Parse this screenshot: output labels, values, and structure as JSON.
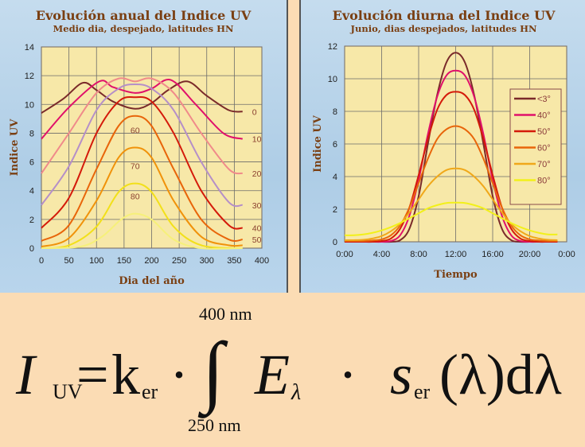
{
  "chart_data": [
    {
      "type": "line",
      "title": "Evolución anual del Indice UV",
      "subtitle": "Medio dia, despejado, latitudes HN",
      "xlabel": "Dia del año",
      "ylabel": "Indice UV",
      "xlim": [
        0,
        400
      ],
      "ylim": [
        0,
        14
      ],
      "xticks": [
        "0",
        "50",
        "100",
        "150",
        "200",
        "250",
        "300",
        "350",
        "400"
      ],
      "yticks": [
        "0",
        "2",
        "4",
        "6",
        "8",
        "10",
        "12",
        "14"
      ],
      "grid": true,
      "series": [
        {
          "name": "0",
          "color": "#7a2a2a",
          "label_pos": "right",
          "points": [
            [
              0,
              9.4
            ],
            [
              40,
              10.4
            ],
            [
              75,
              11.5
            ],
            [
              100,
              11
            ],
            [
              130,
              10.2
            ],
            [
              170,
              9.7
            ],
            [
              200,
              10.1
            ],
            [
              230,
              11
            ],
            [
              265,
              11.6
            ],
            [
              300,
              10.6
            ],
            [
              340,
              9.6
            ],
            [
              365,
              9.5
            ]
          ]
        },
        {
          "name": "10",
          "color": "#e0106a",
          "label_pos": "right",
          "points": [
            [
              0,
              7.6
            ],
            [
              50,
              9.8
            ],
            [
              105,
              11.6
            ],
            [
              130,
              11.2
            ],
            [
              170,
              10.8
            ],
            [
              200,
              11.1
            ],
            [
              235,
              11.7
            ],
            [
              280,
              10
            ],
            [
              330,
              8
            ],
            [
              365,
              7.6
            ]
          ]
        },
        {
          "name": "20",
          "color": "#f08a8a",
          "label_pos": "right",
          "points": [
            [
              0,
              5.2
            ],
            [
              50,
              8
            ],
            [
              100,
              10.8
            ],
            [
              140,
              11.8
            ],
            [
              170,
              11.6
            ],
            [
              200,
              11.8
            ],
            [
              240,
              10.8
            ],
            [
              290,
              8
            ],
            [
              340,
              5.5
            ],
            [
              365,
              5.2
            ]
          ]
        },
        {
          "name": "30",
          "color": "#b58fc8",
          "label_pos": "right",
          "points": [
            [
              0,
              3
            ],
            [
              50,
              5.7
            ],
            [
              100,
              9.6
            ],
            [
              140,
              11.1
            ],
            [
              170,
              11.4
            ],
            [
              200,
              11.1
            ],
            [
              240,
              9.6
            ],
            [
              290,
              6
            ],
            [
              340,
              3.2
            ],
            [
              365,
              3
            ]
          ]
        },
        {
          "name": "40",
          "color": "#d41a0a",
          "label_pos": "right",
          "points": [
            [
              0,
              1.4
            ],
            [
              50,
              3.5
            ],
            [
              100,
              8
            ],
            [
              140,
              10.2
            ],
            [
              170,
              10.5
            ],
            [
              200,
              10.2
            ],
            [
              240,
              8
            ],
            [
              290,
              4
            ],
            [
              340,
              1.6
            ],
            [
              365,
              1.4
            ]
          ]
        },
        {
          "name": "50",
          "color": "#e8650a",
          "label_pos": "right",
          "points": [
            [
              0,
              0.5
            ],
            [
              50,
              1.6
            ],
            [
              100,
              5.5
            ],
            [
              140,
              8.5
            ],
            [
              170,
              9.2
            ],
            [
              200,
              8.5
            ],
            [
              240,
              5.5
            ],
            [
              290,
              2
            ],
            [
              340,
              0.6
            ],
            [
              365,
              0.6
            ]
          ]
        },
        {
          "name": "60",
          "color": "#f0920a",
          "label_pos": "peak",
          "points": [
            [
              0,
              0.1
            ],
            [
              50,
              0.7
            ],
            [
              100,
              3.3
            ],
            [
              140,
              6.3
            ],
            [
              170,
              7
            ],
            [
              200,
              6.3
            ],
            [
              240,
              3.3
            ],
            [
              290,
              0.8
            ],
            [
              340,
              0.2
            ],
            [
              365,
              0.2
            ]
          ]
        },
        {
          "name": "70",
          "color": "#f2e01a",
          "label_pos": "peak",
          "points": [
            [
              0,
              0
            ],
            [
              50,
              0.2
            ],
            [
              100,
              1.5
            ],
            [
              140,
              3.9
            ],
            [
              170,
              4.5
            ],
            [
              200,
              3.9
            ],
            [
              240,
              1.5
            ],
            [
              290,
              0.2
            ],
            [
              365,
              0
            ]
          ]
        },
        {
          "name": "80",
          "color": "#f6f07a",
          "label_pos": "peak",
          "points": [
            [
              0,
              0
            ],
            [
              70,
              0.1
            ],
            [
              110,
              0.8
            ],
            [
              145,
              2
            ],
            [
              170,
              2.4
            ],
            [
              200,
              2
            ],
            [
              240,
              0.6
            ],
            [
              290,
              0
            ],
            [
              365,
              0
            ]
          ]
        }
      ]
    },
    {
      "type": "line",
      "title": "Evolución diurna del Indice UV",
      "subtitle": "Junio, dias despejados, latitudes HN",
      "xlabel": "Tiempo",
      "ylabel": "Indice UV",
      "xlim": [
        0,
        24
      ],
      "ylim": [
        0,
        12
      ],
      "xticks": [
        "0:00",
        "4:00",
        "8:00",
        "12:00",
        "16:00",
        "20:00",
        "0:00"
      ],
      "yticks": [
        "0",
        "2",
        "4",
        "6",
        "8",
        "10",
        "12"
      ],
      "grid": true,
      "legend": "right",
      "hours": [
        0,
        1,
        2,
        3,
        4,
        5,
        6,
        7,
        8,
        9,
        10,
        11,
        12,
        13,
        14,
        15,
        16,
        17,
        18,
        19,
        20,
        21,
        22,
        23
      ],
      "series": [
        {
          "name": "<3°",
          "color": "#7a2a2a",
          "values": [
            0,
            0,
            0,
            0,
            0,
            0,
            0.1,
            0.8,
            2.8,
            6,
            9,
            11,
            11.6,
            11,
            9,
            6,
            2.8,
            0.8,
            0.1,
            0,
            0,
            0,
            0,
            0
          ]
        },
        {
          "name": "40°",
          "color": "#e0106a",
          "values": [
            0,
            0,
            0,
            0,
            0,
            0.05,
            0.4,
            1.6,
            3.8,
            6.6,
            8.9,
            10.2,
            10.5,
            10.2,
            8.9,
            6.6,
            3.8,
            1.6,
            0.4,
            0.05,
            0,
            0,
            0,
            0
          ]
        },
        {
          "name": "50°",
          "color": "#d41a0a",
          "values": [
            0,
            0,
            0,
            0,
            0.05,
            0.2,
            0.8,
            2.1,
            4.1,
            6.3,
            8.1,
            9,
            9.2,
            9,
            8.1,
            6.3,
            4.1,
            2.1,
            0.8,
            0.2,
            0.05,
            0,
            0,
            0
          ]
        },
        {
          "name": "60°",
          "color": "#e8650a",
          "values": [
            0.05,
            0.05,
            0.05,
            0.08,
            0.15,
            0.4,
            1,
            2.1,
            3.6,
            5.1,
            6.3,
            6.9,
            7.1,
            6.9,
            6.3,
            5.1,
            3.6,
            2.1,
            1,
            0.4,
            0.15,
            0.08,
            0.05,
            0.05
          ]
        },
        {
          "name": "70°",
          "color": "#f0a81a",
          "values": [
            0.1,
            0.1,
            0.12,
            0.2,
            0.35,
            0.65,
            1.1,
            1.8,
            2.6,
            3.4,
            4,
            4.4,
            4.5,
            4.4,
            4,
            3.4,
            2.6,
            1.8,
            1.1,
            0.65,
            0.35,
            0.2,
            0.12,
            0.1
          ]
        },
        {
          "name": "80°",
          "color": "#f2f01a",
          "values": [
            0.4,
            0.4,
            0.45,
            0.55,
            0.7,
            0.9,
            1.15,
            1.45,
            1.75,
            2.05,
            2.25,
            2.38,
            2.4,
            2.38,
            2.25,
            2.05,
            1.75,
            1.45,
            1.15,
            0.9,
            0.7,
            0.55,
            0.45,
            0.45
          ]
        }
      ]
    }
  ],
  "formula": {
    "lhs": "I",
    "lhs_sub": "UV",
    "equals": "=",
    "k": "k",
    "k_sub": "er",
    "dot": "·",
    "integral": "∫",
    "upper": "400 nm",
    "lower": "250 nm",
    "E": "E",
    "E_sub": "λ",
    "s": "s",
    "s_sub": "er",
    "tail": "(λ)dλ"
  }
}
